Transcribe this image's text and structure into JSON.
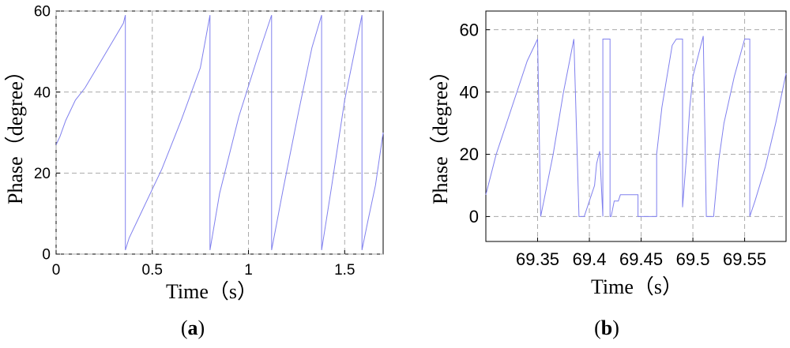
{
  "chart_data": [
    {
      "type": "line",
      "panel_label": "(a)",
      "panel_label_parts": {
        "open": "(",
        "letter": "a",
        "close": ")"
      },
      "xlabel": "Time（s）",
      "ylabel": "Phase（degree）",
      "xlim": [
        0,
        1.7
      ],
      "ylim": [
        0,
        60
      ],
      "xticks": [
        0,
        0.5,
        1,
        1.5
      ],
      "xtick_labels": [
        "0",
        "0.5",
        "1",
        "1.5"
      ],
      "yticks": [
        0,
        20,
        40,
        60
      ],
      "ytick_labels": [
        "0",
        "20",
        "40",
        "60"
      ],
      "grid": true,
      "line_color": "#8080ee",
      "series": [
        {
          "x": [
            0,
            0.02,
            0.05,
            0.1,
            0.15,
            0.2,
            0.25,
            0.3,
            0.35,
            0.36,
            0.36,
            0.38,
            0.45,
            0.55,
            0.65,
            0.75,
            0.8,
            0.8,
            0.85,
            0.95,
            1.05,
            1.12,
            1.12,
            1.18,
            1.26,
            1.33,
            1.38,
            1.38,
            1.43,
            1.5,
            1.56,
            1.59,
            1.59,
            1.62,
            1.66,
            1.7
          ],
          "y": [
            27,
            29,
            33,
            38,
            41,
            45,
            49,
            53,
            57,
            59,
            1,
            4,
            11,
            21,
            33,
            46,
            59,
            1,
            15,
            34,
            49,
            59,
            1,
            16,
            35,
            51,
            59,
            1,
            16,
            38,
            52,
            59,
            1,
            8,
            17,
            30
          ]
        }
      ]
    },
    {
      "type": "line",
      "panel_label": "(b)",
      "panel_label_parts": {
        "open": "(",
        "letter": "b",
        "close": ")"
      },
      "xlabel": "Time（s）",
      "ylabel": "Phase（degree）",
      "xlim": [
        69.3,
        69.59
      ],
      "ylim": [
        -8,
        66
      ],
      "xticks": [
        69.35,
        69.4,
        69.45,
        69.5,
        69.55
      ],
      "xtick_labels": [
        "69.35",
        "69.4",
        "69.45",
        "69.5",
        "69.55"
      ],
      "yticks": [
        0,
        20,
        40,
        60
      ],
      "ytick_labels": [
        "0",
        "20",
        "40",
        "60"
      ],
      "grid": true,
      "line_color": "#8080ee",
      "series": [
        {
          "x": [
            69.3,
            69.31,
            69.32,
            69.33,
            69.34,
            69.35,
            69.353,
            69.356,
            69.365,
            69.375,
            69.385,
            69.39,
            69.39,
            69.395,
            69.405,
            69.407,
            69.41,
            69.413,
            69.413,
            69.42,
            69.42,
            69.421,
            69.424,
            69.428,
            69.43,
            69.445,
            69.447,
            69.447,
            69.465,
            69.465,
            69.47,
            69.475,
            69.48,
            69.484,
            69.487,
            69.49,
            69.49,
            69.494,
            69.497,
            69.5,
            69.51,
            69.513,
            69.52,
            69.525,
            69.53,
            69.54,
            69.55,
            69.555,
            69.555,
            69.56,
            69.57,
            69.58,
            69.59
          ],
          "y": [
            7,
            20,
            30,
            40,
            50,
            57,
            0,
            5,
            20,
            40,
            57,
            0,
            0,
            0,
            10,
            17,
            21,
            0,
            57,
            57,
            0,
            0,
            5,
            5,
            7,
            7,
            7,
            0,
            0,
            20,
            35,
            45,
            55,
            57,
            57,
            57,
            3,
            20,
            35,
            45,
            58,
            0,
            0,
            18,
            30,
            45,
            57,
            57,
            0,
            5,
            16,
            30,
            46
          ]
        }
      ]
    }
  ]
}
